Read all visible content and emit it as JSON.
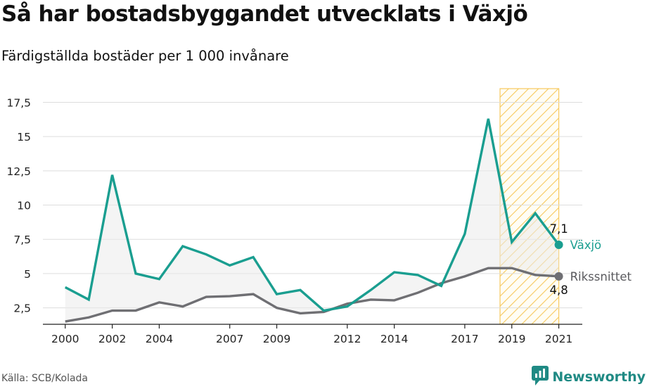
{
  "title": "Så har bostadsbyggandet utvecklats i Växjö",
  "subtitle": "Färdigställda bostäder per 1 000 invånare",
  "source": "Källa: SCB/Kolada",
  "brand": {
    "name": "Newsworthy",
    "icon": "newsworthy-logo-icon",
    "color": "#1f8a84"
  },
  "chart_data": {
    "type": "line",
    "x": [
      2000,
      2001,
      2002,
      2003,
      2004,
      2005,
      2006,
      2007,
      2008,
      2009,
      2010,
      2011,
      2012,
      2013,
      2014,
      2015,
      2016,
      2017,
      2018,
      2019,
      2020,
      2021
    ],
    "xticks": [
      "2000",
      "2002",
      "2004",
      "2007",
      "2009",
      "2012",
      "2014",
      "2017",
      "2019",
      "2021"
    ],
    "yticks": [
      "2,5",
      "5",
      "7,5",
      "10",
      "12,5",
      "15",
      "17,5"
    ],
    "ylim": [
      1.3,
      18.5
    ],
    "xlim": [
      1999.05,
      2022.0
    ],
    "grid": true,
    "shaded_gap_between_series": true,
    "highlight_region": {
      "from": 2018.5,
      "to": 2021.0,
      "pattern": "diagonal-hatch",
      "color": "#f7c95e"
    },
    "series": [
      {
        "name": "Växjö",
        "color": "#1a9e90",
        "values": [
          4.0,
          3.1,
          12.2,
          5.0,
          4.6,
          7.0,
          6.4,
          5.6,
          6.2,
          3.5,
          3.8,
          2.3,
          2.6,
          3.8,
          5.1,
          4.9,
          4.1,
          7.9,
          16.3,
          7.3,
          9.4,
          7.1
        ],
        "end_label": "7,1"
      },
      {
        "name": "Rikssnittet",
        "color": "#6f6f73",
        "values": [
          1.5,
          1.8,
          2.3,
          2.3,
          2.9,
          2.6,
          3.3,
          3.35,
          3.5,
          2.5,
          2.1,
          2.2,
          2.8,
          3.1,
          3.05,
          3.6,
          4.3,
          4.8,
          5.4,
          5.4,
          4.9,
          4.8
        ],
        "end_label": "4,8"
      }
    ]
  }
}
